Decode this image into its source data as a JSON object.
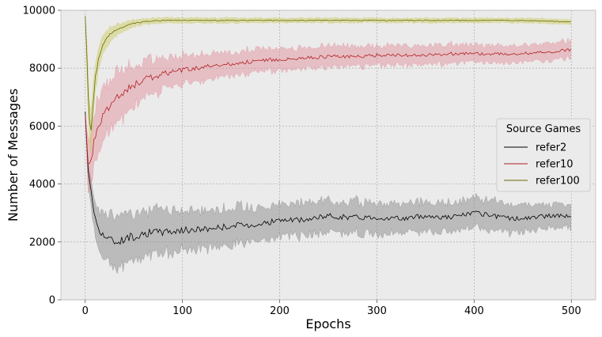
{
  "chart_data": {
    "type": "line",
    "xlabel": "Epochs",
    "ylabel": "Number of Messages",
    "xlim": [
      -25,
      525
    ],
    "ylim": [
      0,
      10000
    ],
    "xticks": [
      0,
      100,
      200,
      300,
      400,
      500
    ],
    "yticks": [
      0,
      2000,
      4000,
      6000,
      8000,
      10000
    ],
    "grid": true,
    "background_color": "#ebebeb",
    "legend": {
      "title": "Source Games",
      "placement": "center-right"
    },
    "series": [
      {
        "name": "refer2",
        "color": "#000000",
        "band_color": "#808080",
        "x": [
          0,
          3,
          6,
          10,
          15,
          20,
          30,
          40,
          60,
          80,
          100,
          125,
          150,
          175,
          200,
          225,
          250,
          275,
          300,
          325,
          350,
          375,
          400,
          425,
          450,
          475,
          500
        ],
        "y": [
          6500,
          4500,
          3800,
          2800,
          2400,
          2200,
          2000,
          2100,
          2300,
          2350,
          2400,
          2450,
          2550,
          2600,
          2750,
          2750,
          2900,
          2850,
          2850,
          2800,
          2900,
          2850,
          3000,
          2850,
          2800,
          2900,
          2900
        ],
        "band": [
          0,
          300,
          500,
          600,
          700,
          800,
          850,
          850,
          800,
          750,
          700,
          650,
          650,
          600,
          550,
          550,
          550,
          550,
          550,
          500,
          500,
          500,
          500,
          500,
          450,
          450,
          400
        ]
      },
      {
        "name": "refer10",
        "color": "#b22222",
        "band_color": "#e08a96",
        "x": [
          0,
          3,
          6,
          10,
          15,
          20,
          30,
          40,
          60,
          80,
          100,
          125,
          150,
          175,
          200,
          225,
          250,
          275,
          300,
          325,
          350,
          375,
          400,
          425,
          450,
          475,
          500
        ],
        "y": [
          6400,
          4600,
          4900,
          5600,
          6100,
          6500,
          6900,
          7200,
          7600,
          7800,
          7950,
          8050,
          8150,
          8250,
          8300,
          8350,
          8400,
          8400,
          8450,
          8450,
          8450,
          8500,
          8500,
          8500,
          8500,
          8550,
          8650
        ],
        "band": [
          0,
          900,
          1000,
          1000,
          950,
          900,
          850,
          800,
          650,
          550,
          500,
          450,
          400,
          400,
          380,
          350,
          350,
          350,
          330,
          330,
          320,
          320,
          300,
          300,
          300,
          300,
          300
        ]
      },
      {
        "name": "refer100",
        "color": "#6b6b00",
        "band_color": "#c9c95a",
        "x": [
          0,
          2,
          4,
          6,
          8,
          10,
          13,
          16,
          20,
          25,
          30,
          40,
          50,
          60,
          80,
          100,
          125,
          150,
          175,
          200,
          250,
          300,
          350,
          400,
          450,
          500
        ],
        "y": [
          9800,
          8200,
          6200,
          5900,
          6600,
          7600,
          8200,
          8600,
          8900,
          9150,
          9300,
          9450,
          9550,
          9600,
          9650,
          9650,
          9650,
          9650,
          9650,
          9650,
          9650,
          9650,
          9650,
          9650,
          9650,
          9600
        ],
        "band": [
          0,
          600,
          800,
          700,
          600,
          500,
          400,
          350,
          300,
          250,
          200,
          150,
          120,
          100,
          100,
          90,
          90,
          90,
          80,
          80,
          80,
          80,
          80,
          80,
          80,
          80
        ]
      }
    ]
  }
}
